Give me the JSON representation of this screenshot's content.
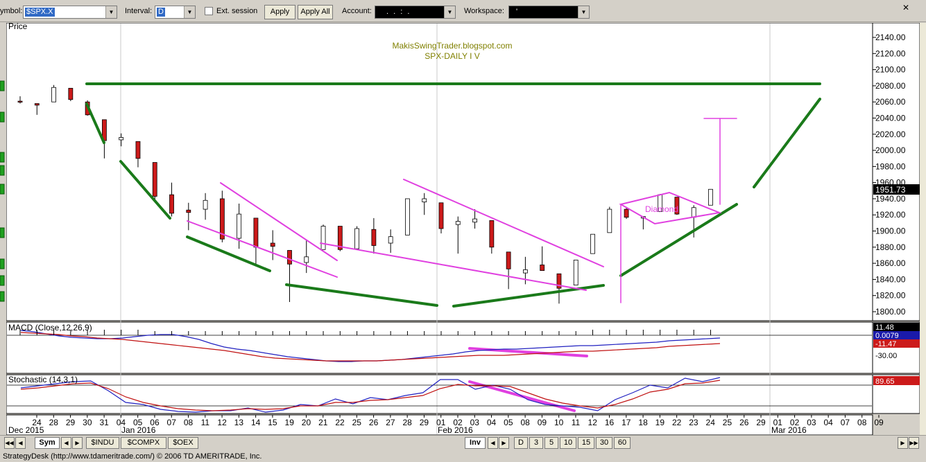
{
  "toolbar": {
    "symbol_label": "ymbol:",
    "symbol_value": "$SPX.X",
    "interval_label": "Interval:",
    "interval_value": "D",
    "ext_session_label": "Ext. session",
    "apply_label": "Apply",
    "apply_all_label": "Apply All",
    "account_label": "Account:",
    "account_value": ". . : .",
    "workspace_label": "Workspace:",
    "workspace_value": "'",
    "close_glyph": "✕"
  },
  "chart": {
    "price_pane_label": "Price",
    "watermark_line1": "MakisSwingTrader.blogspot.com",
    "watermark_line2": "SPX-DAILY  I V",
    "diamond_label": "Diamond",
    "last_price": "1951.73",
    "macd_label": "MACD (Close,12,26,9)",
    "macd_values": [
      "11.48",
      "0.0079",
      "-11.47"
    ],
    "macd_axis_tick": "-30.00",
    "stoch_label": "Stochastic (14,3,1)",
    "stoch_value": "89.65",
    "date_months": [
      "Dec 2015",
      "Jan 2016",
      "Feb 2016",
      "Mar 2016"
    ]
  },
  "chart_data": {
    "type": "candlestick",
    "symbol": "$SPX.X",
    "interval": "Daily",
    "ylim": [
      1790,
      2160
    ],
    "y_ticks": [
      1800,
      1820,
      1840,
      1860,
      1880,
      1900,
      1920,
      1940,
      1960,
      1980,
      2000,
      2020,
      2040,
      2060,
      2080,
      2100,
      2120,
      2140
    ],
    "x_tick_labels": [
      "24",
      "28",
      "29",
      "30",
      "31",
      "04",
      "05",
      "06",
      "07",
      "08",
      "11",
      "12",
      "13",
      "14",
      "15",
      "19",
      "20",
      "21",
      "22",
      "25",
      "26",
      "27",
      "28",
      "29",
      "01",
      "02",
      "03",
      "04",
      "05",
      "08",
      "09",
      "10",
      "11",
      "12",
      "16",
      "17",
      "18",
      "19",
      "22",
      "23",
      "24",
      "25",
      "26",
      "29",
      "01",
      "02",
      "03",
      "04",
      "07",
      "08",
      "09"
    ],
    "candles": [
      {
        "date": "2015-12-24",
        "open": 2061,
        "high": 2067,
        "low": 2058,
        "close": 2060
      },
      {
        "date": "2015-12-28",
        "open": 2058,
        "high": 2058,
        "low": 2044,
        "close": 2056
      },
      {
        "date": "2015-12-29",
        "open": 2060,
        "high": 2081,
        "low": 2060,
        "close": 2078
      },
      {
        "date": "2015-12-30",
        "open": 2077,
        "high": 2077,
        "low": 2061,
        "close": 2063
      },
      {
        "date": "2015-12-31",
        "open": 2060,
        "high": 2062,
        "low": 2043,
        "close": 2044
      },
      {
        "date": "2016-01-04",
        "open": 2038,
        "high": 2038,
        "low": 1990,
        "close": 2012
      },
      {
        "date": "2016-01-05",
        "open": 2013,
        "high": 2021,
        "low": 2005,
        "close": 2016
      },
      {
        "date": "2016-01-06",
        "open": 2011,
        "high": 2011,
        "low": 1979,
        "close": 1990
      },
      {
        "date": "2016-01-07",
        "open": 1985,
        "high": 1985,
        "low": 1938,
        "close": 1943
      },
      {
        "date": "2016-01-08",
        "open": 1945,
        "high": 1960,
        "low": 1918,
        "close": 1922
      },
      {
        "date": "2016-01-11",
        "open": 1926,
        "high": 1935,
        "low": 1901,
        "close": 1923
      },
      {
        "date": "2016-01-12",
        "open": 1927,
        "high": 1947,
        "low": 1914,
        "close": 1938
      },
      {
        "date": "2016-01-13",
        "open": 1940,
        "high": 1950,
        "low": 1886,
        "close": 1890
      },
      {
        "date": "2016-01-14",
        "open": 1891,
        "high": 1934,
        "low": 1878,
        "close": 1921
      },
      {
        "date": "2016-01-15",
        "open": 1916,
        "high": 1916,
        "low": 1857,
        "close": 1880
      },
      {
        "date": "2016-01-19",
        "open": 1885,
        "high": 1901,
        "low": 1864,
        "close": 1881
      },
      {
        "date": "2016-01-20",
        "open": 1876,
        "high": 1876,
        "low": 1812,
        "close": 1859
      },
      {
        "date": "2016-01-21",
        "open": 1861,
        "high": 1889,
        "low": 1848,
        "close": 1868
      },
      {
        "date": "2016-01-22",
        "open": 1877,
        "high": 1908,
        "low": 1877,
        "close": 1906
      },
      {
        "date": "2016-01-25",
        "open": 1906,
        "high": 1906,
        "low": 1875,
        "close": 1877
      },
      {
        "date": "2016-01-26",
        "open": 1878,
        "high": 1906,
        "low": 1878,
        "close": 1903
      },
      {
        "date": "2016-01-27",
        "open": 1902,
        "high": 1916,
        "low": 1872,
        "close": 1882
      },
      {
        "date": "2016-01-28",
        "open": 1885,
        "high": 1902,
        "low": 1873,
        "close": 1893
      },
      {
        "date": "2016-01-29",
        "open": 1895,
        "high": 1940,
        "low": 1895,
        "close": 1940
      },
      {
        "date": "2016-02-01",
        "open": 1936,
        "high": 1947,
        "low": 1920,
        "close": 1940
      },
      {
        "date": "2016-02-02",
        "open": 1935,
        "high": 1935,
        "low": 1897,
        "close": 1903
      },
      {
        "date": "2016-02-03",
        "open": 1908,
        "high": 1918,
        "low": 1872,
        "close": 1912
      },
      {
        "date": "2016-02-04",
        "open": 1911,
        "high": 1927,
        "low": 1903,
        "close": 1915
      },
      {
        "date": "2016-02-05",
        "open": 1913,
        "high": 1913,
        "low": 1872,
        "close": 1880
      },
      {
        "date": "2016-02-08",
        "open": 1874,
        "high": 1874,
        "low": 1828,
        "close": 1853
      },
      {
        "date": "2016-02-09",
        "open": 1848,
        "high": 1868,
        "low": 1834,
        "close": 1852
      },
      {
        "date": "2016-02-10",
        "open": 1858,
        "high": 1881,
        "low": 1851,
        "close": 1851
      },
      {
        "date": "2016-02-11",
        "open": 1847,
        "high": 1847,
        "low": 1810,
        "close": 1829
      },
      {
        "date": "2016-02-12",
        "open": 1833,
        "high": 1864,
        "low": 1833,
        "close": 1864
      },
      {
        "date": "2016-02-16",
        "open": 1872,
        "high": 1896,
        "low": 1872,
        "close": 1896
      },
      {
        "date": "2016-02-17",
        "open": 1898,
        "high": 1930,
        "low": 1898,
        "close": 1927
      },
      {
        "date": "2016-02-18",
        "open": 1927,
        "high": 1930,
        "low": 1915,
        "close": 1917
      },
      {
        "date": "2016-02-19",
        "open": 1916,
        "high": 1918,
        "low": 1902,
        "close": 1918
      },
      {
        "date": "2016-02-22",
        "open": 1924,
        "high": 1946,
        "low": 1924,
        "close": 1945
      },
      {
        "date": "2016-02-23",
        "open": 1942,
        "high": 1942,
        "low": 1920,
        "close": 1921
      },
      {
        "date": "2016-02-24",
        "open": 1917,
        "high": 1932,
        "low": 1892,
        "close": 1929
      },
      {
        "date": "2016-02-25",
        "open": 1932,
        "high": 1952,
        "low": 1932,
        "close": 1951.73
      }
    ]
  },
  "tabs": {
    "sym_label": "Sym",
    "symbols": [
      "$INDU",
      "$COMPX",
      "$OEX"
    ],
    "inv_label": "Inv",
    "intervals": [
      "D",
      "3",
      "5",
      "10",
      "15",
      "30",
      "60"
    ]
  },
  "status": {
    "text": "StrategyDesk (http://www.tdameritrade.com/) © 2006 TD AMERITRADE, Inc."
  },
  "colors": {
    "bull_body": "#ffffff",
    "bear_body": "#cc1a1a",
    "trend_green": "#1a7a1a",
    "trend_magenta": "#e040e0",
    "macd_line": "#2020c0",
    "signal_line": "#c01010",
    "watermark": "#808000"
  }
}
